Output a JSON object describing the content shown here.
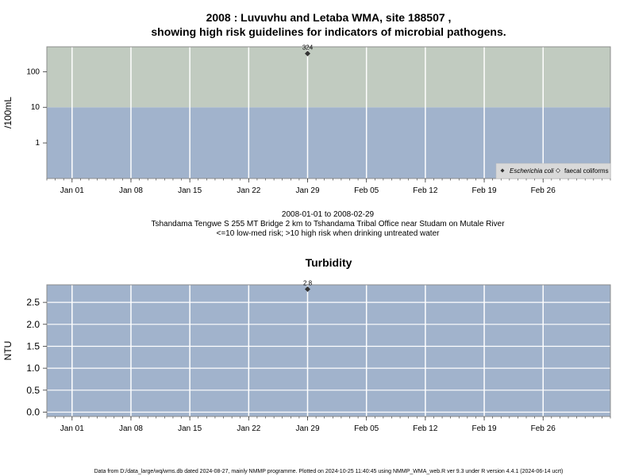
{
  "title": {
    "line1": "2008 : Luvuvhu and Letaba WMA, site 188507 ,",
    "line2": "showing high risk guidelines for indicators of microbial pathogens."
  },
  "subtitle": {
    "date_range": "2008-01-01 to 2008-02-29",
    "site": "Tshandama Tengwe S 255 MT Bridge 2 km to Tshandama Tribal Office near Studam on Mutale River",
    "risk": "<=10 low-med risk; >10 high risk when drinking untreated water"
  },
  "footer": "Data from D:/data_large/wq/wms.db dated 2024-08-27, mainly NMMP programme. Plotted on 2024-10-25 11:40:45 using NMMP_WMA_web.R ver 9.3 under R version 4.4.1 (2024-06-14 ucrt)",
  "colors": {
    "high_risk_band": "#c1cbc0",
    "low_risk_band": "#a1b3cc",
    "plot_bg": "#a1b3cc",
    "grid": "#ffffff",
    "point": "#333333"
  },
  "chart_data": [
    {
      "type": "scatter",
      "title": "",
      "ylabel": "/100mL",
      "y_scale": "log",
      "y_ticks": [
        1,
        10,
        100
      ],
      "y_tick_labels": [
        "1",
        "10",
        "100"
      ],
      "ylim": [
        0.1,
        500
      ],
      "xlim": [
        "2007-12-29",
        "2008-03-05"
      ],
      "x_ticks": [
        "2008-01-01",
        "2008-01-08",
        "2008-01-15",
        "2008-01-22",
        "2008-01-29",
        "2008-02-05",
        "2008-02-12",
        "2008-02-19",
        "2008-02-26"
      ],
      "x_tick_labels": [
        "Jan 01",
        "Jan 08",
        "Jan 15",
        "Jan 22",
        "Jan 29",
        "Feb 05",
        "Feb 12",
        "Feb 19",
        "Feb 26"
      ],
      "bands": [
        {
          "from": 0.1,
          "to": 10
        },
        {
          "from": 10,
          "to": 500
        }
      ],
      "grid": true,
      "legend_position": "bottom-right",
      "series": [
        {
          "name": "Escherichia coli",
          "marker": "filled-diamond",
          "points": [
            {
              "x": "2008-01-29",
              "y": 324,
              "label": "324"
            }
          ]
        },
        {
          "name": "faecal coliforms",
          "marker": "open-diamond",
          "points": []
        }
      ]
    },
    {
      "type": "scatter",
      "title": "Turbidity",
      "ylabel": "NTU",
      "y_scale": "linear",
      "y_ticks": [
        0,
        0.5,
        1,
        1.5,
        2,
        2.5
      ],
      "y_tick_labels": [
        "0.0",
        "0.5",
        "1.0",
        "1.5",
        "2.0",
        "2.5"
      ],
      "ylim": [
        -0.1,
        2.9
      ],
      "xlim": [
        "2007-12-29",
        "2008-03-05"
      ],
      "x_ticks": [
        "2008-01-01",
        "2008-01-08",
        "2008-01-15",
        "2008-01-22",
        "2008-01-29",
        "2008-02-05",
        "2008-02-12",
        "2008-02-19",
        "2008-02-26"
      ],
      "x_tick_labels": [
        "Jan 01",
        "Jan 08",
        "Jan 15",
        "Jan 22",
        "Jan 29",
        "Feb 05",
        "Feb 12",
        "Feb 19",
        "Feb 26"
      ],
      "grid": true,
      "series": [
        {
          "name": "",
          "marker": "filled-diamond",
          "points": [
            {
              "x": "2008-01-29",
              "y": 2.8,
              "label": "2.8"
            }
          ]
        }
      ]
    }
  ]
}
